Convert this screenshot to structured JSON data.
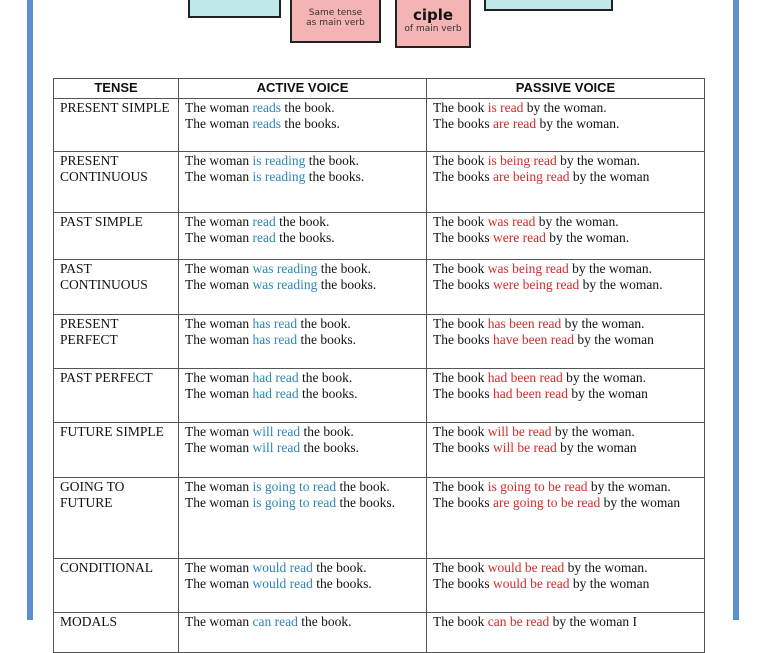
{
  "colors": {
    "active": "#2e86b5",
    "passive": "#d42a2a",
    "frame": "#5b8fd1"
  },
  "cards": [
    {
      "text": ""
    },
    {
      "text": "Same tense as main verb"
    },
    {
      "title": "ciple",
      "text": "of main verb"
    },
    {
      "text": ""
    }
  ],
  "headers": [
    "TENSE",
    "ACTIVE VOICE",
    "PASSIVE VOICE"
  ],
  "rows": [
    {
      "tense": "PRESENT SIMPLE",
      "active": [
        [
          "The woman ",
          "reads",
          " the book."
        ],
        [
          "The woman ",
          "reads",
          " the books."
        ]
      ],
      "passive": [
        [
          "The book ",
          "is read",
          " by the woman."
        ],
        [
          "The books ",
          "are read",
          " by the woman."
        ]
      ]
    },
    {
      "tense": "PRESENT CONTINUOUS",
      "active": [
        [
          "The woman ",
          "is reading",
          " the book."
        ],
        [
          "The woman ",
          "is reading",
          " the books."
        ]
      ],
      "passive": [
        [
          "The book ",
          "is being read",
          " by the woman."
        ],
        [
          "The books ",
          "are being read",
          " by the woman"
        ]
      ]
    },
    {
      "tense": "PAST SIMPLE",
      "active": [
        [
          "The woman ",
          "read",
          " the book."
        ],
        [
          "The woman ",
          "read",
          " the books."
        ]
      ],
      "passive": [
        [
          "The book ",
          "was read",
          " by the woman."
        ],
        [
          "The books ",
          "were read",
          " by the woman."
        ]
      ]
    },
    {
      "tense": "PAST CONTINUOUS",
      "active": [
        [
          "The woman ",
          "was  reading",
          " the book."
        ],
        [
          "The woman ",
          "was reading",
          " the books."
        ]
      ],
      "passive": [
        [
          "The book ",
          "was being read",
          " by the woman."
        ],
        [
          "The books ",
          "were being read",
          " by the woman."
        ]
      ]
    },
    {
      "tense": "PRESENT PERFECT",
      "active": [
        [
          "The woman ",
          "has read",
          " the book."
        ],
        [
          "The woman ",
          "has  read",
          " the books."
        ]
      ],
      "passive": [
        [
          "The book ",
          "has been read",
          " by the woman."
        ],
        [
          "The books ",
          "have been read",
          " by the woman"
        ]
      ]
    },
    {
      "tense": "PAST PERFECT",
      "active": [
        [
          "The woman ",
          "had read",
          " the book."
        ],
        [
          "The woman ",
          "had read",
          " the books."
        ]
      ],
      "passive": [
        [
          "The book ",
          "had been read",
          " by the woman."
        ],
        [
          "The books ",
          "had been read",
          " by the woman"
        ]
      ]
    },
    {
      "tense": "FUTURE SIMPLE",
      "active": [
        [
          "The woman ",
          "will read",
          " the book."
        ],
        [
          "The woman ",
          "will read",
          " the books."
        ]
      ],
      "passive": [
        [
          "The book ",
          "will be read",
          " by the woman."
        ],
        [
          "The books ",
          "will be read",
          " by the woman"
        ]
      ]
    },
    {
      "tense": "GOING TO FUTURE",
      "active": [
        [
          "The woman ",
          "is going to read",
          " the book."
        ],
        [
          "The woman ",
          "is going to read",
          " the books."
        ]
      ],
      "passive": [
        [
          "The book ",
          "is going to be read",
          " by the woman."
        ],
        [
          "The books ",
          "are going to be read",
          " by the woman"
        ]
      ]
    },
    {
      "tense": "CONDITIONAL",
      "active": [
        [
          "The woman ",
          "would read",
          " the book."
        ],
        [
          "The woman ",
          "would read",
          " the books."
        ]
      ],
      "passive": [
        [
          "The book ",
          "would be read",
          " by the woman."
        ],
        [
          "The books ",
          "would be read",
          " by the woman"
        ]
      ]
    },
    {
      "tense": "MODALS",
      "active": [
        [
          "The woman ",
          "can read",
          " the book."
        ]
      ],
      "passive": [
        [
          "The book ",
          "can be read",
          " by the woman I"
        ]
      ]
    }
  ]
}
